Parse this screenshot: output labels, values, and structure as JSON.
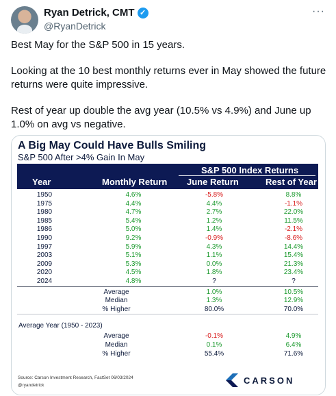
{
  "author": {
    "name": "Ryan Detrick, CMT",
    "handle": "@RyanDetrick",
    "verified_icon": "verified-badge-icon",
    "more_icon": "more-options-icon"
  },
  "tweet": {
    "paragraphs": [
      "Best May for the S&P 500 in 15 years.",
      "Looking at the 10 best monthly returns ever in May showed the future returns were quite impressive.",
      "Rest of year up double the avg year (10.5% vs 4.9%) and June up 1.0% on avg vs negative."
    ]
  },
  "card": {
    "title": "A Big May Could Have Bulls Smiling",
    "subtitle": "S&P 500 After >4% Gain In May",
    "header_group": "S&P 500 Index Returns",
    "columns": [
      "Year",
      "Monthly Return",
      "June Return",
      "Rest of Year"
    ],
    "rows": [
      {
        "year": "1950",
        "month": "4.6%",
        "june": "-5.8%",
        "rest": "8.8%"
      },
      {
        "year": "1975",
        "month": "4.4%",
        "june": "4.4%",
        "rest": "-1.1%"
      },
      {
        "year": "1980",
        "month": "4.7%",
        "june": "2.7%",
        "rest": "22.0%"
      },
      {
        "year": "1985",
        "month": "5.4%",
        "june": "1.2%",
        "rest": "11.5%"
      },
      {
        "year": "1986",
        "month": "5.0%",
        "june": "1.4%",
        "rest": "-2.1%"
      },
      {
        "year": "1990",
        "month": "9.2%",
        "june": "-0.9%",
        "rest": "-8.6%"
      },
      {
        "year": "1997",
        "month": "5.9%",
        "june": "4.3%",
        "rest": "14.4%"
      },
      {
        "year": "2003",
        "month": "5.1%",
        "june": "1.1%",
        "rest": "15.4%"
      },
      {
        "year": "2009",
        "month": "5.3%",
        "june": "0.0%",
        "rest": "21.3%"
      },
      {
        "year": "2020",
        "month": "4.5%",
        "june": "1.8%",
        "rest": "23.4%"
      },
      {
        "year": "2024",
        "month": "4.8%",
        "june": "?",
        "rest": "?"
      }
    ],
    "summary": [
      {
        "label": "Average",
        "june": "1.0%",
        "rest": "10.5%"
      },
      {
        "label": "Median",
        "june": "1.3%",
        "rest": "12.9%"
      },
      {
        "label": "% Higher",
        "june": "80.0%",
        "rest": "70.0%"
      }
    ],
    "avg_year_label": "Average Year (1950 - 2023)",
    "avg_year": [
      {
        "label": "Average",
        "june": "-0.1%",
        "rest": "4.9%"
      },
      {
        "label": "Median",
        "june": "0.1%",
        "rest": "6.4%"
      },
      {
        "label": "% Higher",
        "june": "55.4%",
        "rest": "71.6%"
      }
    ],
    "source": "Source: Carson Investment Research, FactSet 06/03/2024",
    "credit": "@ryandetrick",
    "brand": "CARSON",
    "colors": {
      "positive": "#1c9a2e",
      "negative": "#d81b1b",
      "header_bg": "#0d1a54"
    }
  }
}
